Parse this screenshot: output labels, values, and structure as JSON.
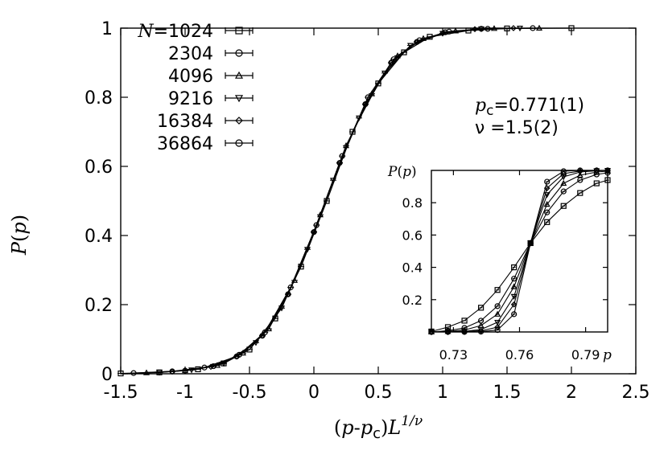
{
  "chart_data": [
    {
      "id": "main",
      "type": "line",
      "title": "",
      "xlabel": "(p-p_c)L^{1/ν}",
      "xlabel_parts": {
        "open": "(",
        "p1": "p",
        "minus": "-",
        "p2": "p",
        "sub": "c",
        "close": ")",
        "L": "L",
        "exp": "1/ν"
      },
      "ylabel": "P(p)",
      "ylabel_parts": {
        "P": "P",
        "open": "(",
        "p": "p",
        "close": ")"
      },
      "xlim": [
        -1.5,
        2.5
      ],
      "ylim": [
        0,
        1
      ],
      "xticks": [
        -1.5,
        -1,
        -0.5,
        0,
        0.5,
        1,
        1.5,
        2,
        2.5
      ],
      "xtick_labels": [
        "-1.5",
        "-1",
        "-0.5",
        "0",
        "0.5",
        "1",
        "1.5",
        "2",
        "2.5"
      ],
      "yticks": [
        0,
        0.2,
        0.4,
        0.6,
        0.8,
        1
      ],
      "ytick_labels": [
        "0",
        "0.2",
        "0.4",
        "0.6",
        "0.8",
        "1"
      ],
      "annotations": {
        "pc_symbol": "p",
        "pc_sub": "c",
        "pc_value": "=0.771(1)",
        "nu_line": "ν =1.5(2)"
      },
      "legend": {
        "position": "top-left",
        "n_prefix": "N",
        "entries": [
          "=1024",
          "2304",
          "4096",
          "9216",
          "16384",
          "36864"
        ],
        "markers": [
          "square",
          "circle",
          "triangle-up",
          "triangle-down",
          "diamond",
          "circle"
        ]
      },
      "series": [
        {
          "name": "N=1024",
          "x": [
            -1.5,
            -1.2,
            -0.9,
            -0.7,
            -0.5,
            -0.3,
            -0.1,
            0.1,
            0.3,
            0.5,
            0.7,
            0.9,
            1.2,
            1.5,
            2.0
          ],
          "y": [
            0.001,
            0.004,
            0.013,
            0.03,
            0.07,
            0.16,
            0.31,
            0.5,
            0.7,
            0.84,
            0.93,
            0.975,
            0.993,
            0.999,
            1.0
          ]
        },
        {
          "name": "N=2304",
          "x": [
            -1.4,
            -1.1,
            -0.85,
            -0.6,
            -0.4,
            -0.2,
            0.0,
            0.2,
            0.4,
            0.6,
            0.8,
            1.05,
            1.35,
            1.7
          ],
          "y": [
            0.002,
            0.007,
            0.018,
            0.05,
            0.11,
            0.23,
            0.41,
            0.61,
            0.78,
            0.9,
            0.96,
            0.99,
            0.998,
            1.0
          ]
        },
        {
          "name": "N=4096",
          "x": [
            -1.3,
            -1.0,
            -0.75,
            -0.55,
            -0.35,
            -0.15,
            0.05,
            0.25,
            0.45,
            0.65,
            0.85,
            1.1,
            1.4,
            1.75
          ],
          "y": [
            0.003,
            0.009,
            0.024,
            0.06,
            0.13,
            0.27,
            0.46,
            0.66,
            0.81,
            0.92,
            0.97,
            0.992,
            0.999,
            1.0
          ]
        },
        {
          "name": "N=9216",
          "x": [
            -1.2,
            -0.95,
            -0.7,
            -0.45,
            -0.25,
            -0.05,
            0.15,
            0.35,
            0.55,
            0.75,
            1.0,
            1.3,
            1.6
          ],
          "y": [
            0.004,
            0.011,
            0.03,
            0.09,
            0.19,
            0.36,
            0.56,
            0.74,
            0.87,
            0.95,
            0.985,
            0.998,
            1.0
          ]
        },
        {
          "name": "N=16384",
          "x": [
            -1.1,
            -0.8,
            -0.6,
            -0.4,
            -0.2,
            0.0,
            0.2,
            0.4,
            0.6,
            0.8,
            1.0,
            1.25,
            1.55
          ],
          "y": [
            0.006,
            0.02,
            0.05,
            0.11,
            0.23,
            0.41,
            0.61,
            0.78,
            0.9,
            0.96,
            0.985,
            0.997,
            1.0
          ]
        },
        {
          "name": "N=36864",
          "x": [
            -1.0,
            -0.78,
            -0.58,
            -0.38,
            -0.18,
            0.02,
            0.22,
            0.42,
            0.62,
            0.82,
            1.02,
            1.3
          ],
          "y": [
            0.009,
            0.022,
            0.055,
            0.12,
            0.25,
            0.43,
            0.63,
            0.8,
            0.91,
            0.965,
            0.988,
            0.998
          ]
        }
      ]
    },
    {
      "id": "inset",
      "type": "line",
      "title": "",
      "xlabel": "p",
      "ylabel": "P(p)",
      "ylabel_parts": {
        "P": "P",
        "open": "(",
        "p": "p",
        "close": ")"
      },
      "xlim": [
        0.72,
        0.8
      ],
      "ylim": [
        0,
        1
      ],
      "xticks": [
        0.73,
        0.76,
        0.79
      ],
      "xtick_labels": [
        "0.73",
        "0.76",
        "0.79"
      ],
      "yticks": [
        0.2,
        0.4,
        0.6,
        0.8
      ],
      "ytick_labels": [
        "0.2",
        "0.4",
        "0.6",
        "0.8"
      ],
      "series": [
        {
          "name": "N=1024",
          "x": [
            0.72,
            0.7275,
            0.735,
            0.7425,
            0.75,
            0.7575,
            0.765,
            0.7725,
            0.78,
            0.7875,
            0.795,
            0.8
          ],
          "y": [
            0.003,
            0.03,
            0.07,
            0.15,
            0.26,
            0.4,
            0.55,
            0.68,
            0.78,
            0.86,
            0.92,
            0.94
          ]
        },
        {
          "name": "N=2304",
          "x": [
            0.72,
            0.7275,
            0.735,
            0.7425,
            0.75,
            0.7575,
            0.765,
            0.7725,
            0.78,
            0.7875,
            0.795,
            0.8
          ],
          "y": [
            0.0,
            0.008,
            0.025,
            0.07,
            0.16,
            0.33,
            0.55,
            0.74,
            0.87,
            0.94,
            0.975,
            0.985
          ]
        },
        {
          "name": "N=4096",
          "x": [
            0.72,
            0.7275,
            0.735,
            0.7425,
            0.75,
            0.7575,
            0.765,
            0.7725,
            0.78,
            0.7875,
            0.795,
            0.8
          ],
          "y": [
            0.0,
            0.003,
            0.012,
            0.04,
            0.11,
            0.28,
            0.55,
            0.79,
            0.92,
            0.97,
            0.99,
            0.995
          ]
        },
        {
          "name": "N=9216",
          "x": [
            0.72,
            0.7275,
            0.735,
            0.7425,
            0.75,
            0.7575,
            0.765,
            0.7725,
            0.78,
            0.7875,
            0.795,
            0.8
          ],
          "y": [
            0.0,
            0.001,
            0.004,
            0.015,
            0.06,
            0.22,
            0.55,
            0.85,
            0.96,
            0.99,
            0.998,
            1.0
          ]
        },
        {
          "name": "N=16384",
          "x": [
            0.72,
            0.7275,
            0.735,
            0.7425,
            0.75,
            0.7575,
            0.765,
            0.7725,
            0.78,
            0.7875,
            0.795,
            0.8
          ],
          "y": [
            0.0,
            0.0,
            0.002,
            0.007,
            0.03,
            0.17,
            0.55,
            0.89,
            0.98,
            0.996,
            1.0,
            1.0
          ]
        },
        {
          "name": "N=36864",
          "x": [
            0.72,
            0.7275,
            0.735,
            0.7425,
            0.75,
            0.7575,
            0.765,
            0.7725,
            0.78,
            0.7875,
            0.795,
            0.8
          ],
          "y": [
            0.0,
            0.0,
            0.0,
            0.002,
            0.012,
            0.11,
            0.55,
            0.93,
            0.995,
            1.0,
            1.0,
            1.0
          ]
        }
      ]
    }
  ]
}
